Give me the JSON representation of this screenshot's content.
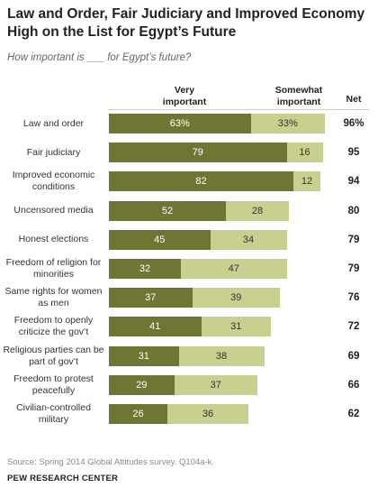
{
  "title": "Law and Order, Fair Judiciary and Improved Economy High on the List for Egypt’s Future",
  "subtitle": "How important is ___ for Egypt’s future?",
  "headers": {
    "very_important": "Very important",
    "somewhat_important": "Somewhat important",
    "net": "Net"
  },
  "colors": {
    "very_important": "#6f7533",
    "somewhat_important": "#c8cf8f"
  },
  "chart_data": {
    "type": "bar",
    "orientation": "horizontal",
    "stacked": true,
    "title": "Law and Order, Fair Judiciary and Improved Economy High on the List for Egypt’s Future",
    "subtitle": "How important is ___ for Egypt’s future?",
    "categories": [
      "Law and order",
      "Fair judiciary",
      "Improved economic conditions",
      "Uncensored media",
      "Honest elections",
      "Freedom of religion for minorities",
      "Same rights for women as men",
      "Freedom to openly criticize the gov’t",
      "Religious parties can be part of gov’t",
      "Freedom to protest peacefully",
      "Civilian-controlled military"
    ],
    "series": [
      {
        "name": "Very important",
        "values": [
          63,
          79,
          82,
          52,
          45,
          32,
          37,
          41,
          31,
          29,
          26
        ]
      },
      {
        "name": "Somewhat important",
        "values": [
          33,
          16,
          12,
          28,
          34,
          47,
          39,
          31,
          38,
          37,
          36
        ]
      }
    ],
    "first_row_labels": {
      "very_important": "63%",
      "somewhat_important": "33%",
      "net": "96%"
    },
    "net": [
      96,
      95,
      94,
      80,
      79,
      79,
      76,
      72,
      69,
      66,
      62
    ]
  },
  "footer": {
    "source": "Source: Spring 2014 Global Attitudes survey. Q104a-k.",
    "org": "PEW RESEARCH CENTER"
  }
}
